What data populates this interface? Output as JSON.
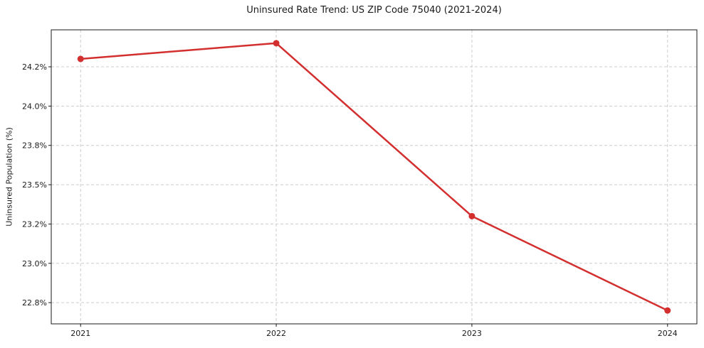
{
  "chart_data": {
    "type": "line",
    "title": "Uninsured Rate Trend: US ZIP Code 75040 (2021-2024)",
    "xlabel": "",
    "ylabel": "Uninsured Population (%)",
    "x": [
      2021,
      2022,
      2023,
      2024
    ],
    "values": [
      24.3,
      24.4,
      23.3,
      22.7
    ],
    "value_unit": "%",
    "xlim": [
      2020.85,
      2024.15
    ],
    "ylim": [
      22.615,
      24.485
    ],
    "xticks": [
      {
        "v": 2021,
        "label": "2021"
      },
      {
        "v": 2022,
        "label": "2022"
      },
      {
        "v": 2023,
        "label": "2023"
      },
      {
        "v": 2024,
        "label": "2024"
      }
    ],
    "yticks": [
      {
        "v": 22.75,
        "label": "22.8%"
      },
      {
        "v": 23.0,
        "label": "23.0%"
      },
      {
        "v": 23.25,
        "label": "23.2%"
      },
      {
        "v": 23.5,
        "label": "23.5%"
      },
      {
        "v": 23.75,
        "label": "23.8%"
      },
      {
        "v": 24.0,
        "label": "24.0%"
      },
      {
        "v": 24.25,
        "label": "24.2%"
      }
    ],
    "grid": true,
    "grid_style": "dashed",
    "legend": "none",
    "line_color": "#d32f2f",
    "marker": "circle",
    "grid_color": "#cccccc",
    "spine_color": "#1a1a1a"
  }
}
